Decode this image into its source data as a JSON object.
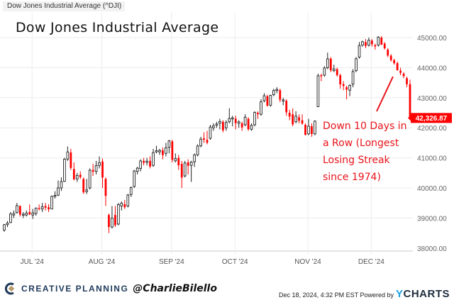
{
  "header": {
    "source_title": "Dow Jones Industrial Average (^DJI)"
  },
  "chart_data": {
    "type": "candlestick",
    "title": "Dow Jones Industrial Average",
    "ylim": [
      38000,
      45500
    ],
    "yticks": [
      "45000.00",
      "44000.00",
      "43000.00",
      "42000.00",
      "41000.00",
      "40000.00",
      "39000.00",
      "38000.00"
    ],
    "ytick_values": [
      45000,
      44000,
      43000,
      42000,
      41000,
      40000,
      39000,
      38000
    ],
    "xticks": [
      {
        "label": "JUL '24",
        "date": "2024-07-01"
      },
      {
        "label": "AUG '24",
        "date": "2024-08-01"
      },
      {
        "label": "SEP '24",
        "date": "2024-09-03"
      },
      {
        "label": "OCT '24",
        "date": "2024-10-01"
      },
      {
        "label": "NOV '24",
        "date": "2024-11-01"
      },
      {
        "label": "DEC '24",
        "date": "2024-12-02"
      }
    ],
    "grid": true,
    "colors": {
      "up": "#222222",
      "down": "#ff0000"
    },
    "last_value_label": "42,326.87",
    "annotation": "Down 10 Days in a Row (Longest Losing Streak since 1974)",
    "columns": [
      "date",
      "open",
      "high",
      "low",
      "close"
    ],
    "candles": [
      [
        "2024-06-17",
        38600,
        38800,
        38540,
        38778
      ],
      [
        "2024-06-18",
        38780,
        38900,
        38700,
        38834
      ],
      [
        "2024-06-20",
        38850,
        39200,
        38830,
        39134
      ],
      [
        "2024-06-21",
        39100,
        39250,
        39000,
        39150
      ],
      [
        "2024-06-24",
        39180,
        39500,
        39150,
        39411
      ],
      [
        "2024-06-25",
        39400,
        39420,
        39050,
        39112
      ],
      [
        "2024-06-26",
        39100,
        39200,
        39000,
        39127
      ],
      [
        "2024-06-27",
        39100,
        39250,
        39050,
        39164
      ],
      [
        "2024-06-28",
        39200,
        39450,
        39100,
        39118
      ],
      [
        "2024-07-01",
        39100,
        39300,
        38970,
        39169
      ],
      [
        "2024-07-02",
        39150,
        39350,
        39080,
        39331
      ],
      [
        "2024-07-03",
        39330,
        39450,
        39250,
        39308
      ],
      [
        "2024-07-05",
        39300,
        39500,
        39200,
        39375
      ],
      [
        "2024-07-08",
        39400,
        39500,
        39250,
        39344
      ],
      [
        "2024-07-09",
        39360,
        39460,
        39200,
        39291
      ],
      [
        "2024-07-10",
        39300,
        39750,
        39290,
        39721
      ],
      [
        "2024-07-11",
        39730,
        39890,
        39650,
        39753
      ],
      [
        "2024-07-12",
        39760,
        40250,
        39730,
        40000
      ],
      [
        "2024-07-15",
        40000,
        40350,
        39900,
        40211
      ],
      [
        "2024-07-16",
        40220,
        41000,
        40200,
        40954
      ],
      [
        "2024-07-17",
        40960,
        41380,
        40900,
        41198
      ],
      [
        "2024-07-18",
        41180,
        41300,
        40600,
        40665
      ],
      [
        "2024-07-19",
        40630,
        40850,
        40250,
        40287
      ],
      [
        "2024-07-22",
        40300,
        40500,
        40200,
        40415
      ],
      [
        "2024-07-23",
        40440,
        40550,
        40300,
        40358
      ],
      [
        "2024-07-24",
        40300,
        40350,
        39800,
        39854
      ],
      [
        "2024-07-25",
        39880,
        40300,
        39800,
        39935
      ],
      [
        "2024-07-26",
        40000,
        40650,
        39950,
        40589
      ],
      [
        "2024-07-29",
        40600,
        40800,
        40400,
        40539
      ],
      [
        "2024-07-30",
        40550,
        40900,
        40450,
        40743
      ],
      [
        "2024-07-31",
        40750,
        41050,
        40650,
        40842
      ],
      [
        "2024-08-01",
        40880,
        40980,
        40000,
        40347
      ],
      [
        "2024-08-02",
        40300,
        40350,
        39400,
        39737
      ],
      [
        "2024-08-05",
        39100,
        39150,
        38500,
        38703
      ],
      [
        "2024-08-06",
        38700,
        39400,
        38650,
        38997
      ],
      [
        "2024-08-07",
        39100,
        39400,
        38700,
        38763
      ],
      [
        "2024-08-08",
        38800,
        39500,
        38750,
        39446
      ],
      [
        "2024-08-09",
        39400,
        39550,
        39250,
        39497
      ],
      [
        "2024-08-12",
        39460,
        39600,
        39300,
        39357
      ],
      [
        "2024-08-13",
        39400,
        39800,
        39350,
        39765
      ],
      [
        "2024-08-14",
        39780,
        40050,
        39700,
        40009
      ],
      [
        "2024-08-15",
        40050,
        40600,
        40000,
        40563
      ],
      [
        "2024-08-16",
        40550,
        40700,
        40450,
        40659
      ],
      [
        "2024-08-19",
        40650,
        40950,
        40550,
        40896
      ],
      [
        "2024-08-20",
        40900,
        41000,
        40750,
        40834
      ],
      [
        "2024-08-21",
        40850,
        41000,
        40750,
        40890
      ],
      [
        "2024-08-22",
        40900,
        41050,
        40650,
        40712
      ],
      [
        "2024-08-23",
        40750,
        41300,
        40700,
        41175
      ],
      [
        "2024-08-26",
        41200,
        41400,
        41150,
        41240
      ],
      [
        "2024-08-27",
        41200,
        41300,
        41100,
        41250
      ],
      [
        "2024-08-28",
        41250,
        41350,
        40950,
        41091
      ],
      [
        "2024-08-29",
        41150,
        41500,
        41050,
        41335
      ],
      [
        "2024-08-30",
        41350,
        41600,
        41150,
        41563
      ],
      [
        "2024-09-03",
        41550,
        41600,
        40850,
        40937
      ],
      [
        "2024-09-04",
        40900,
        41150,
        40850,
        40975
      ],
      [
        "2024-09-05",
        41000,
        41100,
        40600,
        40755
      ],
      [
        "2024-09-06",
        40800,
        40900,
        40000,
        40345
      ],
      [
        "2024-09-09",
        40400,
        40900,
        40350,
        40830
      ],
      [
        "2024-09-10",
        40850,
        40950,
        40450,
        40737
      ],
      [
        "2024-09-11",
        40750,
        40900,
        40200,
        40861
      ],
      [
        "2024-09-12",
        40870,
        41150,
        40700,
        41097
      ],
      [
        "2024-09-13",
        41100,
        41450,
        41050,
        41394
      ],
      [
        "2024-09-16",
        41400,
        41700,
        41350,
        41622
      ],
      [
        "2024-09-17",
        41650,
        41850,
        41500,
        41606
      ],
      [
        "2024-09-18",
        41600,
        41900,
        41450,
        41504
      ],
      [
        "2024-09-19",
        41650,
        42100,
        41600,
        42025
      ],
      [
        "2024-09-20",
        42000,
        42150,
        41900,
        42063
      ],
      [
        "2024-09-23",
        42100,
        42200,
        42000,
        42125
      ],
      [
        "2024-09-24",
        42150,
        42300,
        41950,
        42208
      ],
      [
        "2024-09-25",
        42200,
        42250,
        41850,
        41915
      ],
      [
        "2024-09-26",
        42000,
        42250,
        41900,
        42175
      ],
      [
        "2024-09-27",
        42200,
        42650,
        42150,
        42313
      ],
      [
        "2024-09-30",
        42300,
        42400,
        42050,
        42330
      ],
      [
        "2024-10-01",
        42300,
        42400,
        41950,
        42156
      ],
      [
        "2024-10-02",
        42150,
        42250,
        42000,
        42197
      ],
      [
        "2024-10-03",
        42150,
        42200,
        41900,
        42012
      ],
      [
        "2024-10-04",
        42100,
        42450,
        42050,
        42353
      ],
      [
        "2024-10-07",
        42300,
        42350,
        41900,
        41954
      ],
      [
        "2024-10-08",
        41950,
        42150,
        41900,
        42080
      ],
      [
        "2024-10-09",
        42100,
        42550,
        42050,
        42512
      ],
      [
        "2024-10-10",
        42500,
        42550,
        42300,
        42454
      ],
      [
        "2024-10-11",
        42450,
        42950,
        42400,
        42864
      ],
      [
        "2024-10-14",
        42900,
        43150,
        42850,
        43065
      ],
      [
        "2024-10-15",
        43050,
        43100,
        42700,
        42740
      ],
      [
        "2024-10-16",
        42750,
        43100,
        42700,
        43078
      ],
      [
        "2024-10-17",
        43100,
        43300,
        43050,
        43239
      ],
      [
        "2024-10-18",
        43250,
        43350,
        43150,
        43276
      ],
      [
        "2024-10-21",
        43250,
        43300,
        42850,
        42931
      ],
      [
        "2024-10-22",
        42900,
        43000,
        42750,
        42925
      ],
      [
        "2024-10-23",
        42900,
        42950,
        42400,
        42514
      ],
      [
        "2024-10-24",
        42500,
        42600,
        42250,
        42374
      ],
      [
        "2024-10-25",
        42450,
        42650,
        42050,
        42115
      ],
      [
        "2024-10-28",
        42200,
        42550,
        42150,
        42388
      ],
      [
        "2024-10-29",
        42350,
        42450,
        42150,
        42234
      ],
      [
        "2024-10-30",
        42250,
        42450,
        42100,
        42142
      ],
      [
        "2024-10-31",
        42100,
        42150,
        41750,
        41763
      ],
      [
        "2024-11-01",
        41800,
        42300,
        41750,
        42052
      ],
      [
        "2024-11-04",
        42050,
        42150,
        41700,
        41795
      ],
      [
        "2024-11-05",
        41800,
        42250,
        41750,
        42222
      ],
      [
        "2024-11-06",
        42700,
        43800,
        42700,
        43730
      ],
      [
        "2024-11-07",
        43750,
        43800,
        43550,
        43729
      ],
      [
        "2024-11-08",
        43750,
        44050,
        43700,
        43989
      ],
      [
        "2024-11-11",
        44000,
        44500,
        43950,
        44293
      ],
      [
        "2024-11-12",
        44300,
        44350,
        43850,
        43911
      ],
      [
        "2024-11-13",
        43900,
        44100,
        43850,
        43958
      ],
      [
        "2024-11-14",
        43950,
        44000,
        43700,
        43751
      ],
      [
        "2024-11-15",
        43750,
        43800,
        43300,
        43445
      ],
      [
        "2024-11-18",
        43450,
        43550,
        43250,
        43390
      ],
      [
        "2024-11-19",
        43350,
        43400,
        42950,
        43269
      ],
      [
        "2024-11-20",
        43250,
        43450,
        43050,
        43408
      ],
      [
        "2024-11-21",
        43450,
        43950,
        43350,
        43870
      ],
      [
        "2024-11-22",
        43900,
        44350,
        43850,
        44297
      ],
      [
        "2024-11-25",
        44350,
        44850,
        44300,
        44737
      ],
      [
        "2024-11-26",
        44750,
        44900,
        44700,
        44860
      ],
      [
        "2024-11-27",
        44850,
        44950,
        44650,
        44722
      ],
      [
        "2024-11-29",
        44750,
        45000,
        44700,
        44911
      ],
      [
        "2024-12-02",
        44900,
        44950,
        44700,
        44782
      ],
      [
        "2024-12-03",
        44750,
        44800,
        44600,
        44706
      ],
      [
        "2024-12-04",
        44750,
        45050,
        44700,
        45014
      ],
      [
        "2024-12-05",
        45000,
        45050,
        44750,
        44766
      ],
      [
        "2024-12-06",
        44800,
        44850,
        44600,
        44643
      ],
      [
        "2024-12-09",
        44600,
        44650,
        44350,
        44402
      ],
      [
        "2024-12-10",
        44400,
        44450,
        44200,
        44248
      ],
      [
        "2024-12-11",
        44250,
        44300,
        44100,
        44149
      ],
      [
        "2024-12-12",
        44150,
        44200,
        43900,
        43914
      ],
      [
        "2024-12-13",
        43900,
        44000,
        43750,
        43828
      ],
      [
        "2024-12-16",
        43800,
        43850,
        43650,
        43717
      ],
      [
        "2024-12-17",
        43650,
        43700,
        43350,
        43450
      ],
      [
        "2024-12-18",
        43450,
        43600,
        42320,
        42327
      ]
    ]
  },
  "footer": {
    "brand": "CREATIVE PLANNING",
    "handle": "@CharlieBilello",
    "timestamp": "Dec 18, 2024, 4:32 PM EST Powered by",
    "ycharts_y": "Y",
    "ycharts_rest": "CHARTS",
    "logo_icon": "creative-planning-logo-icon"
  }
}
